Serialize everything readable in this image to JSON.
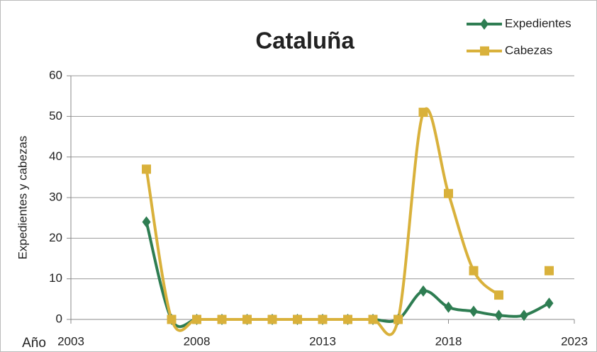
{
  "chart_data": {
    "type": "line",
    "title": "Cataluña",
    "xlabel": "Año",
    "ylabel": "Expedientes y cabezas",
    "x": [
      2006,
      2007,
      2008,
      2009,
      2010,
      2011,
      2012,
      2013,
      2014,
      2015,
      2016,
      2017,
      2018,
      2019,
      2020,
      2021,
      2022
    ],
    "series": [
      {
        "name": "Expedientes",
        "color": "#2e7d52",
        "marker": "diamond",
        "values": [
          24,
          0,
          0,
          0,
          0,
          0,
          0,
          0,
          0,
          0,
          0,
          7,
          3,
          2,
          1,
          1,
          4
        ]
      },
      {
        "name": "Cabezas",
        "color": "#d9b13b",
        "marker": "square",
        "values": [
          37,
          0,
          0,
          0,
          0,
          0,
          0,
          0,
          0,
          0,
          0,
          51,
          31,
          12,
          6,
          null,
          12
        ]
      }
    ],
    "xlim": [
      2003,
      2023
    ],
    "xticks": [
      2003,
      2008,
      2013,
      2018,
      2023
    ],
    "ylim": [
      0,
      60
    ],
    "yticks": [
      0,
      10,
      20,
      30,
      40,
      50,
      60
    ],
    "grid": true,
    "smooth": true,
    "legend": "top-right"
  }
}
